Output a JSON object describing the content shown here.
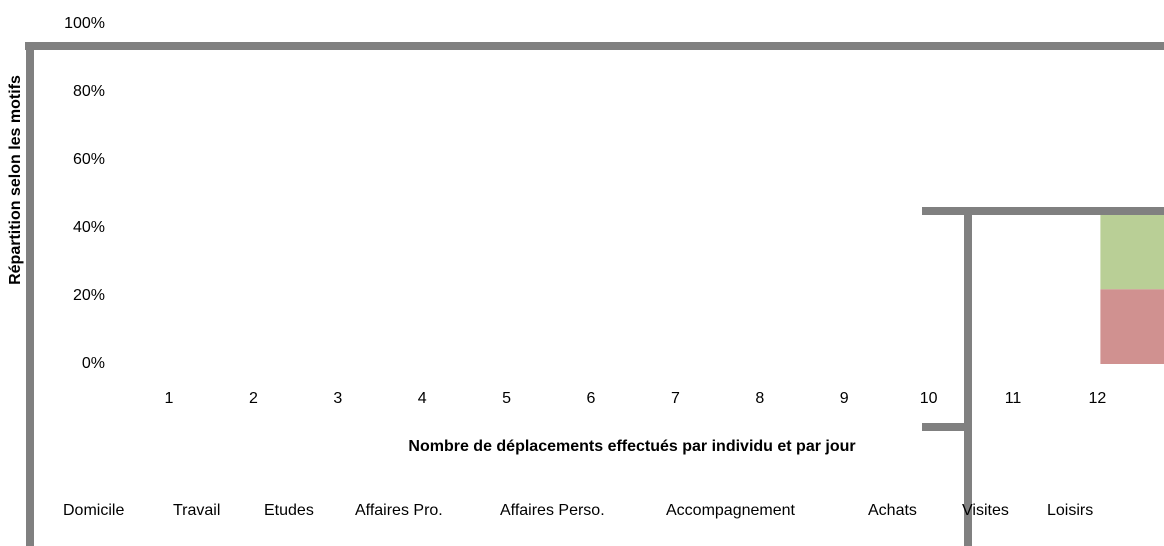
{
  "chart_data": {
    "type": "bar",
    "stacked": true,
    "y_label": "Répartition selon les motifs",
    "x_label": "Nombre de déplacements effectués par individu et par jour",
    "categories": [
      "1",
      "2",
      "3",
      "4",
      "5",
      "6",
      "7",
      "8",
      "9",
      "10",
      "11",
      "12"
    ],
    "ylim": [
      0,
      100
    ],
    "yticks": [
      {
        "value": 0,
        "label": "0%"
      },
      {
        "value": 20,
        "label": "20%"
      },
      {
        "value": 40,
        "label": "40%"
      },
      {
        "value": 60,
        "label": "60%"
      },
      {
        "value": 80,
        "label": "80%"
      },
      {
        "value": 100,
        "label": "100%"
      }
    ],
    "grid": false,
    "legend": "bottom",
    "series": [
      {
        "name": "Domicile",
        "color": "#d09190",
        "values": [
          null,
          null,
          null,
          null,
          null,
          null,
          null,
          null,
          null,
          null,
          null,
          22
        ]
      },
      {
        "name": "Travail",
        "color": "#b9cf96",
        "values": [
          null,
          null,
          null,
          null,
          null,
          null,
          null,
          null,
          null,
          null,
          null,
          23
        ]
      },
      {
        "name": "Etudes",
        "color": "#a99bbd",
        "values": [
          null,
          null,
          null,
          null,
          null,
          null,
          null,
          null,
          null,
          null,
          null,
          null
        ]
      },
      {
        "name": "Affaires Pro.",
        "color": "#93cddd",
        "values": [
          null,
          null,
          null,
          null,
          null,
          null,
          null,
          null,
          null,
          null,
          null,
          null
        ]
      },
      {
        "name": "Affaires Perso.",
        "color": "#fac090",
        "values": [
          null,
          null,
          null,
          null,
          null,
          null,
          null,
          null,
          null,
          null,
          null,
          null
        ]
      },
      {
        "name": "Accompagnement",
        "color": "#95b3d7",
        "values": [
          null,
          null,
          null,
          null,
          null,
          null,
          null,
          null,
          null,
          null,
          null,
          null
        ]
      },
      {
        "name": "Achats",
        "color": "#e6b9b8",
        "values": [
          null,
          null,
          null,
          null,
          null,
          null,
          null,
          null,
          null,
          null,
          null,
          null
        ]
      },
      {
        "name": "Visites",
        "color": "#d7e4bd",
        "values": [
          null,
          null,
          null,
          null,
          null,
          null,
          null,
          null,
          null,
          null,
          null,
          null
        ]
      },
      {
        "name": "Loisirs",
        "color": "#ccc1da",
        "values": [
          null,
          null,
          null,
          null,
          null,
          null,
          null,
          null,
          null,
          null,
          null,
          null
        ]
      }
    ]
  }
}
